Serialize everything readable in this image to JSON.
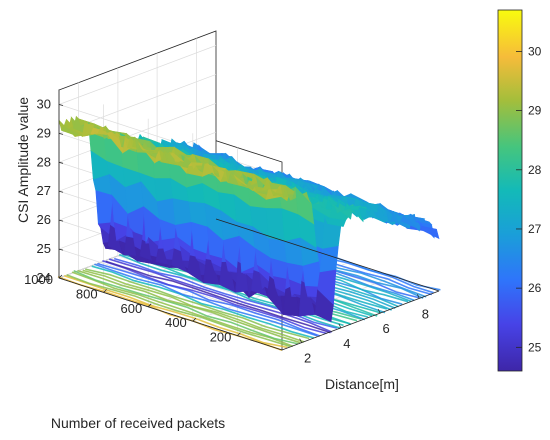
{
  "chart_data": {
    "type": "surface",
    "title": "",
    "zlabel": "CSI Amplitude value",
    "xlabel": "Distance[m]",
    "ylabel": "Number of received packets",
    "x_ticks": [
      "2",
      "4",
      "6",
      "8"
    ],
    "y_ticks": [
      "200",
      "400",
      "600",
      "800",
      "1000"
    ],
    "z_ticks": [
      "24",
      "25",
      "26",
      "27",
      "28",
      "29",
      "30"
    ],
    "colorbar_ticks": [
      "25",
      "26",
      "27",
      "28",
      "29",
      "30"
    ],
    "xlim": [
      1,
      9
    ],
    "ylim": [
      0,
      1000
    ],
    "zlim": [
      24,
      30.5
    ],
    "colormap": "parula",
    "clim": [
      24.6,
      30.7
    ],
    "grid": true,
    "colorbar": "right",
    "contour_projection_on_floor": true,
    "series": [
      {
        "x": [
          1,
          1.5,
          2,
          2.5,
          3,
          3.5,
          4,
          4.5,
          5,
          5.5,
          6,
          6.5,
          7,
          7.5,
          8,
          8.5,
          9
        ],
        "mean_amplitude": [
          29.3,
          29.2,
          29.1,
          28.8,
          25.5,
          24.3,
          27.6,
          27.9,
          27.7,
          27.5,
          27.3,
          27.2,
          27.0,
          26.8,
          26.6,
          26.3,
          26.0
        ]
      }
    ]
  }
}
